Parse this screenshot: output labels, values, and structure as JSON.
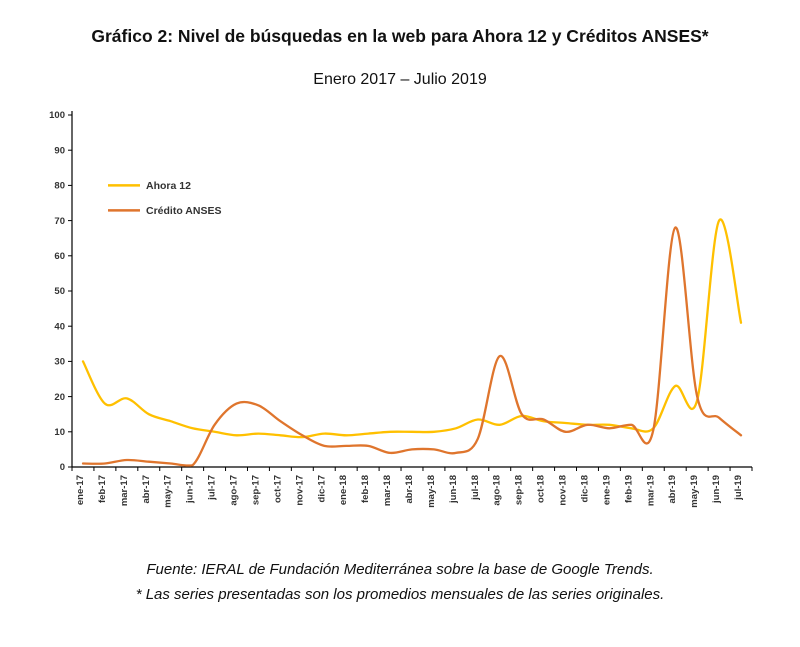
{
  "page": {
    "title": "Gráfico 2: Nivel de búsquedas en la web para Ahora 12 y Créditos ANSES*",
    "subtitle": "Enero 2017 – Julio 2019",
    "source_line": "Fuente: IERAL de Fundación Mediterránea sobre la base de Google Trends.",
    "note_line": "* Las series presentadas son los promedios mensuales de las series originales."
  },
  "chart_data": {
    "type": "line",
    "title": "Nivel de búsquedas en la web para Ahora 12 y Créditos ANSES",
    "xlabel": "",
    "ylabel": "",
    "ylim": [
      0,
      100
    ],
    "ytick_step": 10,
    "grid": false,
    "legend_position": "upper-left-inside",
    "axis_color": "#000000",
    "tick_label_color": "#333333",
    "categories": [
      "ene-17",
      "feb-17",
      "mar-17",
      "abr-17",
      "may-17",
      "jun-17",
      "jul-17",
      "ago-17",
      "sep-17",
      "oct-17",
      "nov-17",
      "dic-17",
      "ene-18",
      "feb-18",
      "mar-18",
      "abr-18",
      "may-18",
      "jun-18",
      "jul-18",
      "ago-18",
      "sep-18",
      "oct-18",
      "nov-18",
      "dic-18",
      "ene-19",
      "feb-19",
      "mar-19",
      "abr-19",
      "may-19",
      "jun-19",
      "jul-19"
    ],
    "series": [
      {
        "name": "Ahora 12",
        "color": "#FFC000",
        "values": [
          30,
          18,
          19.5,
          15,
          13,
          11,
          10,
          9,
          9.5,
          9,
          8.5,
          9.5,
          9,
          9.5,
          10,
          10,
          10,
          11,
          13.5,
          12,
          14.5,
          13,
          12.5,
          12,
          12,
          11,
          11,
          23,
          19,
          70,
          41
        ]
      },
      {
        "name": "Crédito ANSES",
        "color": "#DF752D",
        "values": [
          1,
          1,
          2,
          1.5,
          1,
          0.5,
          12,
          18,
          17.5,
          13,
          9,
          6,
          6,
          6,
          4,
          5,
          5,
          4,
          8,
          31.5,
          15,
          13.5,
          10,
          12,
          11,
          12,
          10.5,
          68,
          20,
          14,
          9
        ]
      }
    ]
  }
}
